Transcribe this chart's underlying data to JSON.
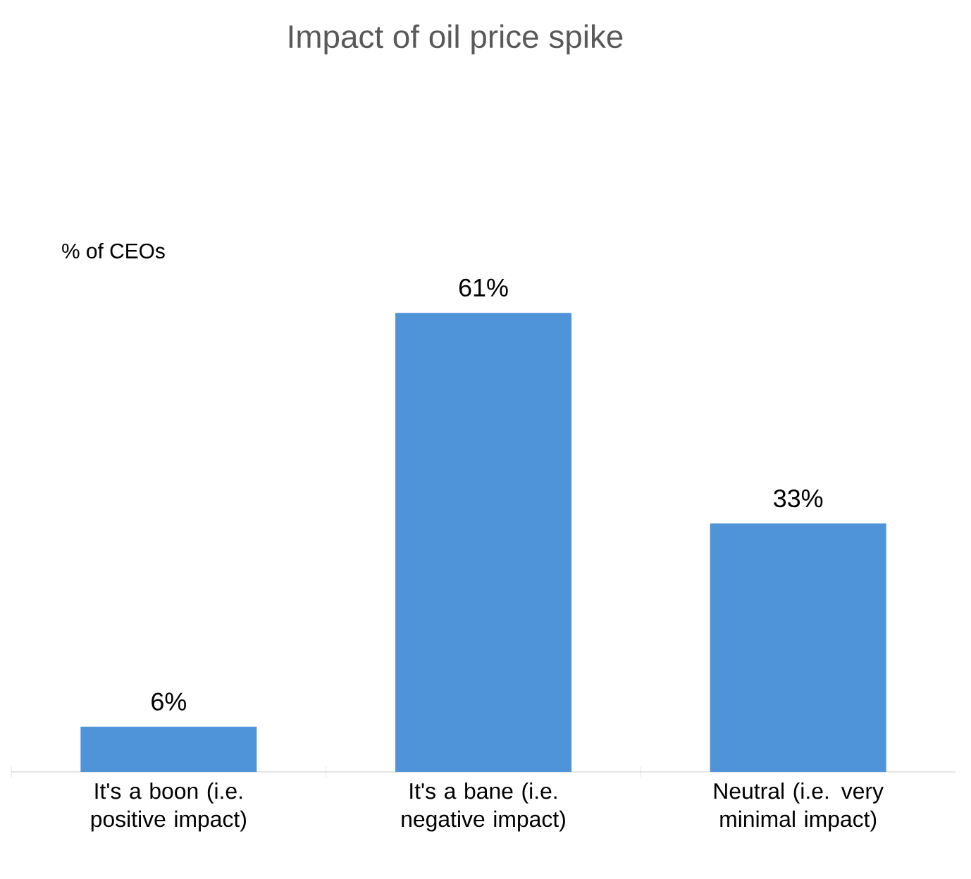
{
  "chart_data": {
    "type": "bar",
    "title": "Impact of oil price spike",
    "ylabel": "% of CEOs",
    "categories": [
      "It's a boon (i.e. positive impact)",
      "It's a bane (i.e. negative impact)",
      "Neutral (i.e. very minimal impact)"
    ],
    "values": [
      6,
      61,
      33
    ],
    "color": "#4f94d9",
    "value_labels": [
      "6%",
      "61%",
      "33%"
    ]
  }
}
